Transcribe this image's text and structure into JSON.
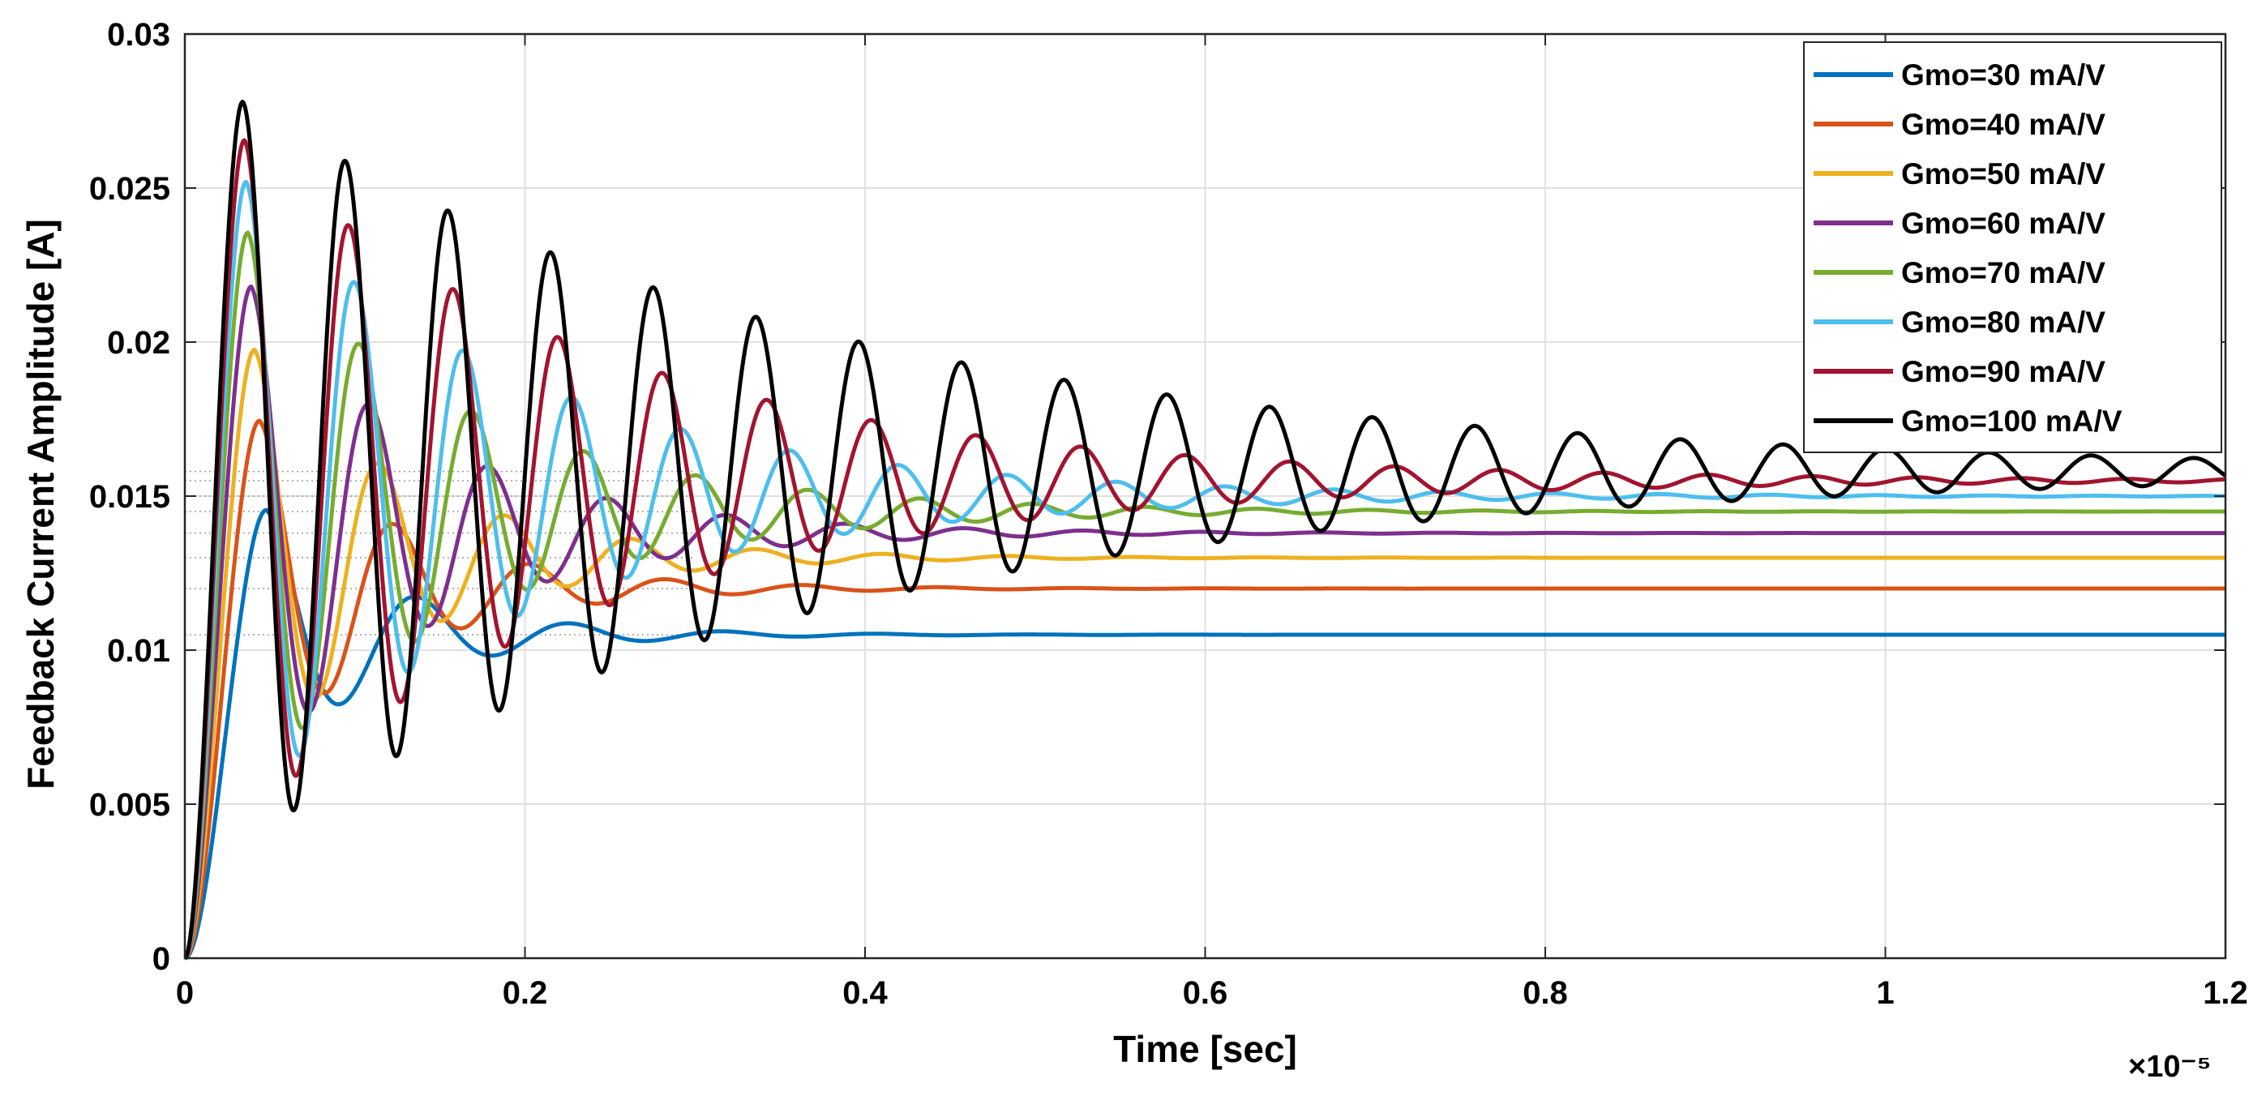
{
  "chart_data": {
    "type": "line",
    "title": "",
    "xlabel": "Time [sec]",
    "ylabel": "Feedback Current Amplitude [A]",
    "x_exponent_label": "×10⁻⁵",
    "xlim": [
      0,
      1.2
    ],
    "ylim": [
      0,
      0.03
    ],
    "x_scale_note": "x values in units of 1e-5 s",
    "xticks": [
      0,
      0.2,
      0.4,
      0.6,
      0.8,
      1,
      1.2
    ],
    "xtick_labels": [
      "0",
      "0.2",
      "0.4",
      "0.6",
      "0.8",
      "1",
      "1.2"
    ],
    "yticks": [
      0,
      0.005,
      0.01,
      0.015,
      0.02,
      0.025,
      0.03
    ],
    "ytick_labels": [
      "0",
      "0.005",
      "0.01",
      "0.015",
      "0.02",
      "0.025",
      "0.03"
    ],
    "grid": true,
    "legend_position": "top-right",
    "series": [
      {
        "name": "Gmo=30 mA/V",
        "color": "#0072BD",
        "final": 0.0105,
        "first_peak": 0.01455,
        "first_peak_time": 0.048,
        "period": 0.09,
        "decay_per_cycle": 0.3
      },
      {
        "name": "Gmo=40 mA/V",
        "color": "#D95319",
        "final": 0.012,
        "first_peak": 0.01745,
        "first_peak_time": 0.044,
        "period": 0.08,
        "decay_per_cycle": 0.38
      },
      {
        "name": "Gmo=50 mA/V",
        "color": "#EDB120",
        "final": 0.013,
        "first_peak": 0.01975,
        "first_peak_time": 0.041,
        "period": 0.074,
        "decay_per_cycle": 0.45
      },
      {
        "name": "Gmo=60 mA/V",
        "color": "#7E2F8E",
        "final": 0.0138,
        "first_peak": 0.0218,
        "first_peak_time": 0.039,
        "period": 0.07,
        "decay_per_cycle": 0.52
      },
      {
        "name": "Gmo=70 mA/V",
        "color": "#77AC30",
        "final": 0.0145,
        "first_peak": 0.02355,
        "first_peak_time": 0.037,
        "period": 0.066,
        "decay_per_cycle": 0.6
      },
      {
        "name": "Gmo=80 mA/V",
        "color": "#4DBEEE",
        "final": 0.015,
        "first_peak": 0.0252,
        "first_peak_time": 0.036,
        "period": 0.064,
        "decay_per_cycle": 0.68
      },
      {
        "name": "Gmo=90 mA/V",
        "color": "#A2142F",
        "final": 0.0155,
        "first_peak": 0.02655,
        "first_peak_time": 0.035,
        "period": 0.0615,
        "decay_per_cycle": 0.75
      },
      {
        "name": "Gmo=100 mA/V",
        "color": "#000000",
        "final": 0.0158,
        "first_peak": 0.0278,
        "first_peak_time": 0.034,
        "period": 0.0604,
        "decay_per_cycle": 0.84
      }
    ]
  }
}
